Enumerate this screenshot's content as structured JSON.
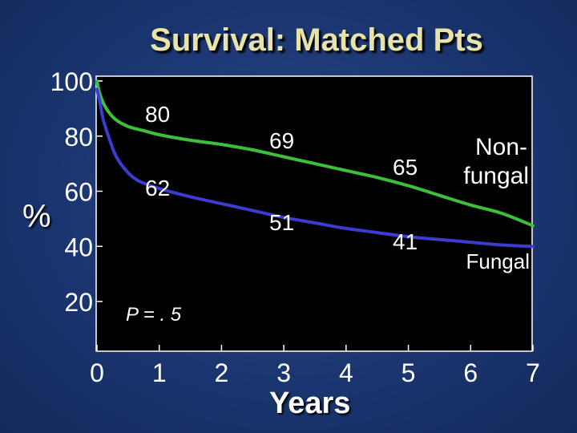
{
  "chart_data": {
    "type": "line",
    "title": "Survival: Matched Pts",
    "xlabel": "Years",
    "ylabel": "%",
    "xlim": [
      0,
      7
    ],
    "ylim": [
      0,
      100
    ],
    "x_ticks": [
      "0",
      "1",
      "2",
      "3",
      "4",
      "5",
      "6",
      "7"
    ],
    "y_ticks": [
      "20",
      "40",
      "60",
      "80",
      "100"
    ],
    "series": [
      {
        "name": "Non- fungal",
        "color": "#3cc03c",
        "points": [
          [
            0,
            100
          ],
          [
            0.05,
            95
          ],
          [
            0.15,
            90
          ],
          [
            0.3,
            86
          ],
          [
            0.5,
            83.5
          ],
          [
            0.75,
            82
          ],
          [
            1,
            80.5
          ],
          [
            1.5,
            78.5
          ],
          [
            2,
            77
          ],
          [
            2.5,
            75
          ],
          [
            3,
            72.5
          ],
          [
            3.5,
            70
          ],
          [
            4,
            67.5
          ],
          [
            4.5,
            65
          ],
          [
            5,
            62
          ],
          [
            5.5,
            58.5
          ],
          [
            6,
            55
          ],
          [
            6.5,
            52
          ],
          [
            7,
            47.5
          ]
        ]
      },
      {
        "name": "Fungal",
        "color": "#3c3cd2",
        "points": [
          [
            0,
            97
          ],
          [
            0.05,
            92
          ],
          [
            0.1,
            86
          ],
          [
            0.2,
            79
          ],
          [
            0.3,
            73
          ],
          [
            0.45,
            68
          ],
          [
            0.65,
            64
          ],
          [
            1,
            61
          ],
          [
            1.5,
            58
          ],
          [
            2,
            55.5
          ],
          [
            2.5,
            53
          ],
          [
            3,
            50.5
          ],
          [
            3.5,
            48.5
          ],
          [
            4,
            46.5
          ],
          [
            4.5,
            45
          ],
          [
            5,
            43.5
          ],
          [
            5.5,
            42.5
          ],
          [
            6,
            41.5
          ],
          [
            6.5,
            40.5
          ],
          [
            7,
            40
          ]
        ]
      }
    ],
    "annotations": {
      "nonfungal_values": [
        "80",
        "69",
        "65"
      ],
      "fungal_values": [
        "62",
        "51",
        "41"
      ],
      "p_value": "P = . 5",
      "nonfungal_label": [
        "Non-",
        "fungal"
      ],
      "fungal_label": "Fungal"
    }
  }
}
